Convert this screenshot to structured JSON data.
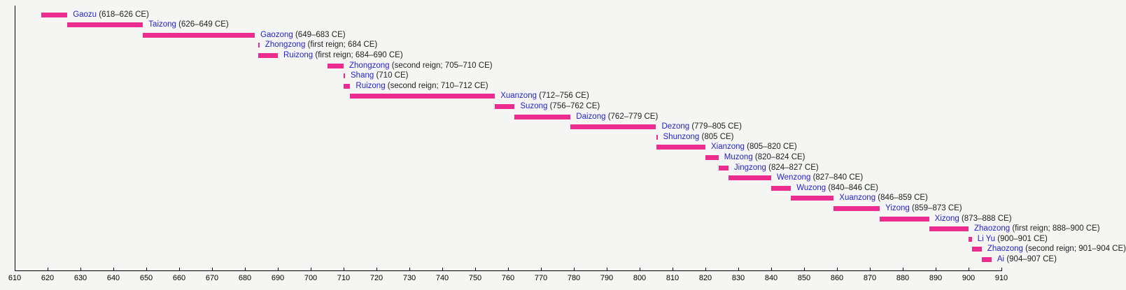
{
  "colors": {
    "background": "#f5f5f4",
    "bar": "#ec2c8f",
    "emperor_name": "#2323cd",
    "date_text": "#202122",
    "axis": "#000000"
  },
  "axis": {
    "min": 610,
    "max": 910,
    "step": 10,
    "tick_labels": [
      "610",
      "620",
      "630",
      "640",
      "650",
      "660",
      "670",
      "680",
      "690",
      "700",
      "710",
      "720",
      "730",
      "740",
      "750",
      "760",
      "770",
      "780",
      "790",
      "800",
      "810",
      "820",
      "830",
      "840",
      "850",
      "860",
      "870",
      "880",
      "890",
      "900",
      "910"
    ]
  },
  "chart_data": {
    "type": "bar",
    "orientation": "horizontal-timeline",
    "title": "",
    "xlabel": "",
    "ylabel": "",
    "xlim": [
      610,
      910
    ],
    "grid": false,
    "legend": false,
    "series": [
      {
        "name": "Gaozu",
        "detail": "(618–626 CE)",
        "start": 618,
        "end": 626
      },
      {
        "name": "Taizong",
        "detail": "(626–649 CE)",
        "start": 626,
        "end": 649
      },
      {
        "name": "Gaozong",
        "detail": "(649–683 CE)",
        "start": 649,
        "end": 683
      },
      {
        "name": "Zhongzong",
        "detail": "(first reign; 684 CE)",
        "start": 684,
        "end": 684
      },
      {
        "name": "Ruizong",
        "detail": "(first reign; 684–690 CE)",
        "start": 684,
        "end": 690
      },
      {
        "name": "Zhongzong",
        "detail": "(second reign; 705–710 CE)",
        "start": 705,
        "end": 710
      },
      {
        "name": "Shang",
        "detail": "(710 CE)",
        "start": 710,
        "end": 710
      },
      {
        "name": "Ruizong",
        "detail": "(second reign; 710–712 CE)",
        "start": 710,
        "end": 712
      },
      {
        "name": "Xuanzong",
        "detail": "(712–756 CE)",
        "start": 712,
        "end": 756
      },
      {
        "name": "Suzong",
        "detail": "(756–762 CE)",
        "start": 756,
        "end": 762
      },
      {
        "name": "Daizong",
        "detail": "(762–779 CE)",
        "start": 762,
        "end": 779
      },
      {
        "name": "Dezong",
        "detail": "(779–805 CE)",
        "start": 779,
        "end": 805
      },
      {
        "name": "Shunzong",
        "detail": "(805 CE)",
        "start": 805,
        "end": 805
      },
      {
        "name": "Xianzong",
        "detail": "(805–820 CE)",
        "start": 805,
        "end": 820
      },
      {
        "name": "Muzong",
        "detail": "(820–824 CE)",
        "start": 820,
        "end": 824
      },
      {
        "name": "Jingzong",
        "detail": "(824–827 CE)",
        "start": 824,
        "end": 827
      },
      {
        "name": "Wenzong",
        "detail": "(827–840 CE)",
        "start": 827,
        "end": 840
      },
      {
        "name": "Wuzong",
        "detail": "(840–846 CE)",
        "start": 840,
        "end": 846
      },
      {
        "name": "Xuanzong",
        "detail": "(846–859 CE)",
        "start": 846,
        "end": 859
      },
      {
        "name": "Yizong",
        "detail": "(859–873 CE)",
        "start": 859,
        "end": 873
      },
      {
        "name": "Xizong",
        "detail": "(873–888 CE)",
        "start": 873,
        "end": 888
      },
      {
        "name": "Zhaozong",
        "detail": "(first reign; 888–900 CE)",
        "start": 888,
        "end": 900
      },
      {
        "name": "Li Yu",
        "detail": "(900–901 CE)",
        "start": 900,
        "end": 901
      },
      {
        "name": "Zhaozong",
        "detail": "(second reign; 901–904 CE)",
        "start": 901,
        "end": 904
      },
      {
        "name": "Ai",
        "detail": "(904–907 CE)",
        "start": 904,
        "end": 907
      }
    ]
  }
}
